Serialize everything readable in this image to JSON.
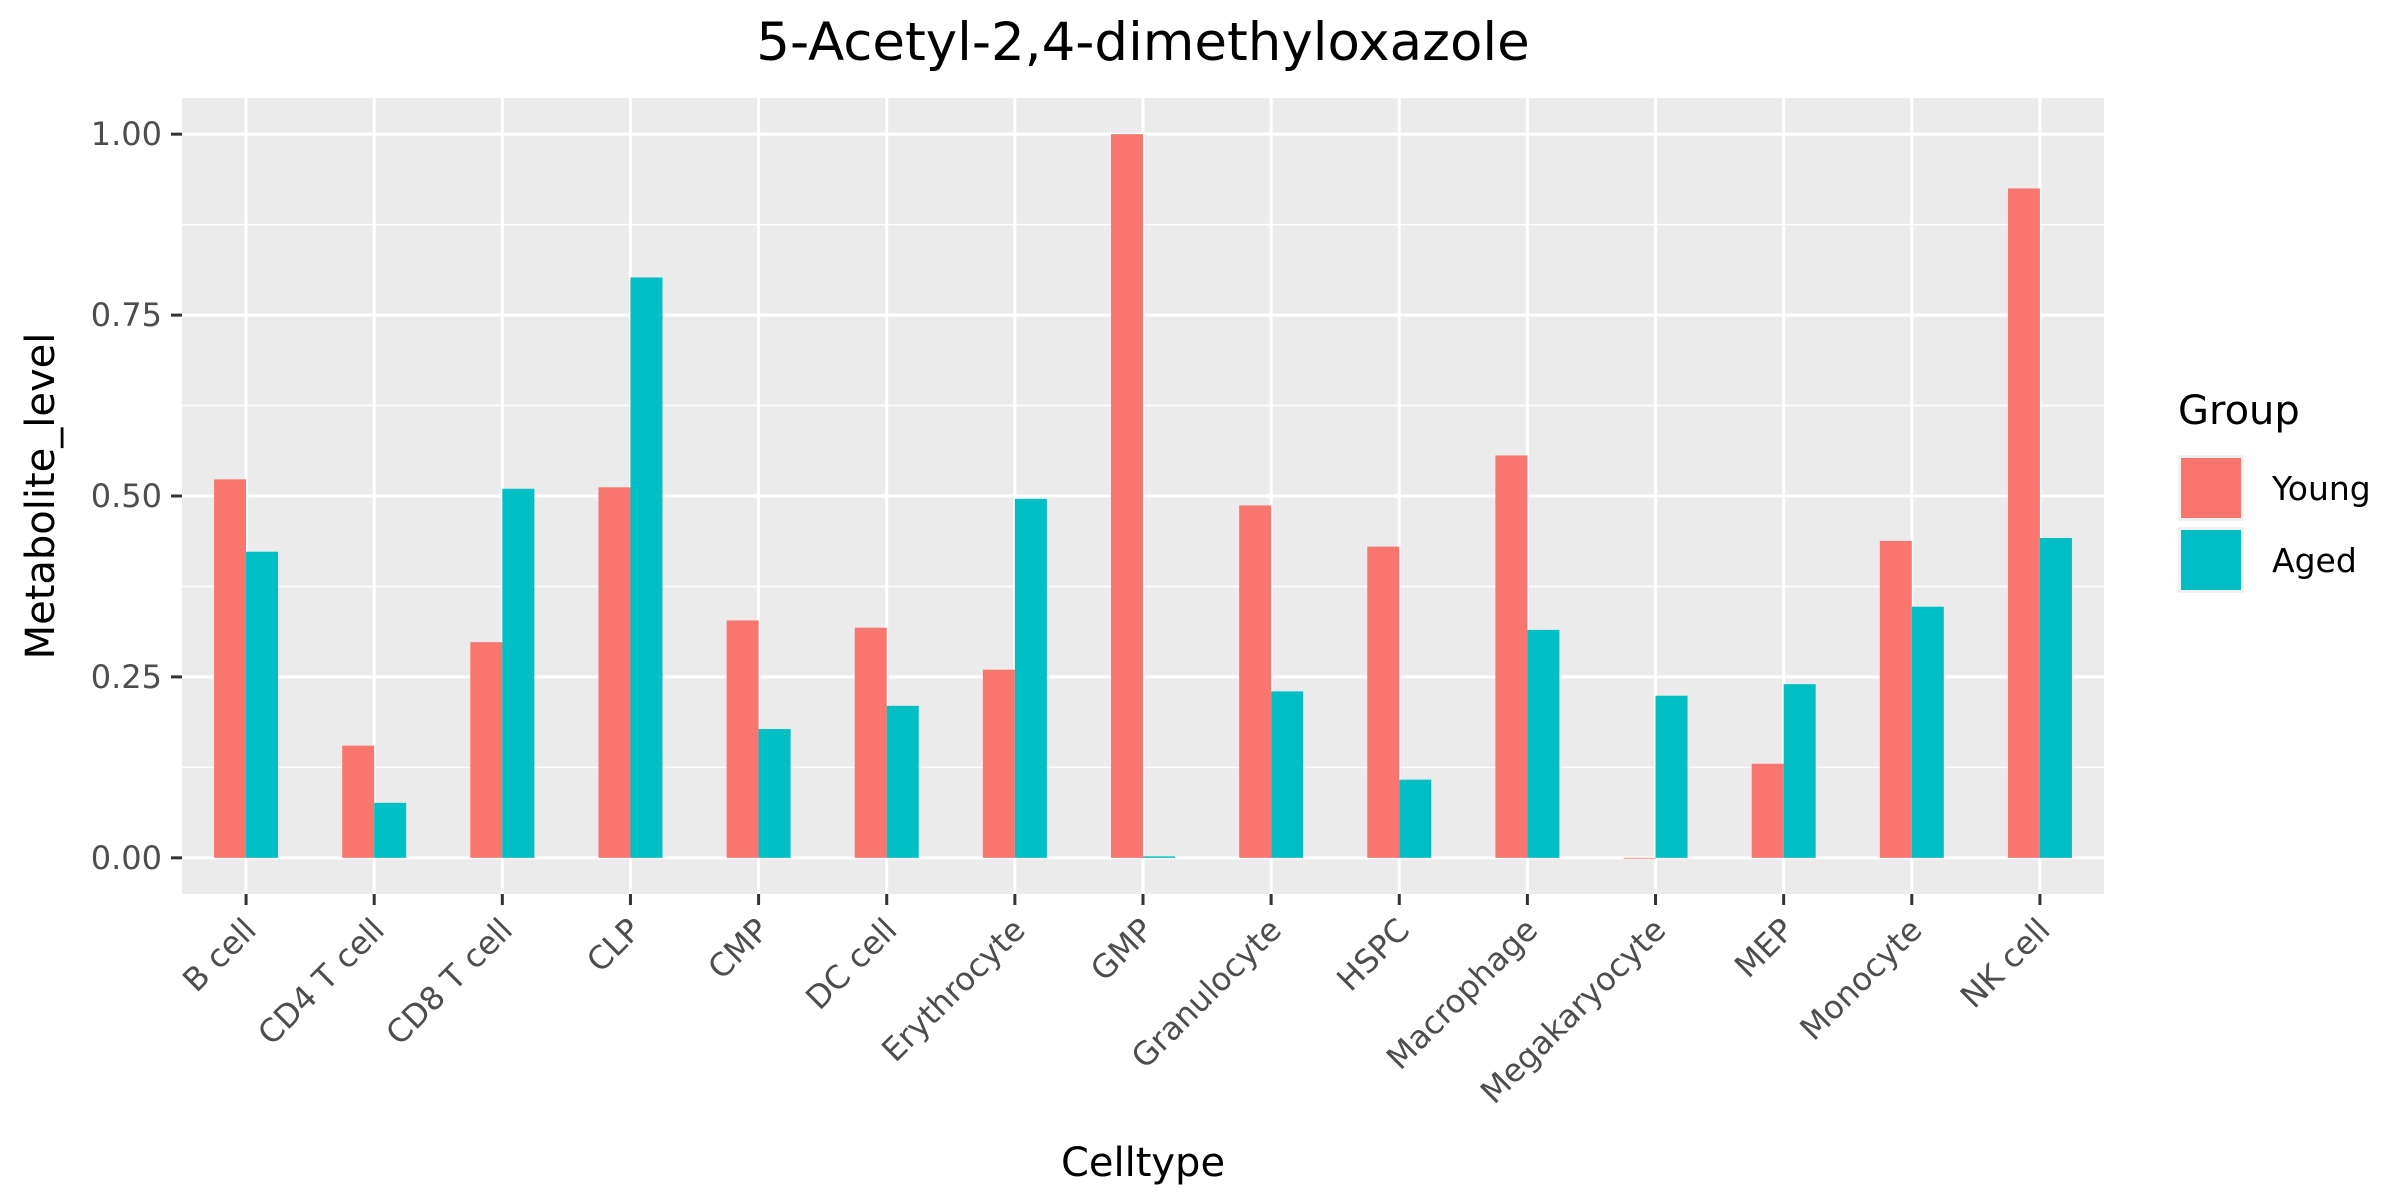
{
  "chart_data": {
    "type": "bar",
    "title": "5-Acetyl-2,4-dimethyloxazole",
    "xlabel": "Celltype",
    "ylabel": "Metabolite_level",
    "categories": [
      "B cell",
      "CD4 T cell",
      "CD8 T cell",
      "CLP",
      "CMP",
      "DC cell",
      "Erythrocyte",
      "GMP",
      "Granulocyte",
      "HSPC",
      "Macrophage",
      "Megakaryocyte",
      "MEP",
      "Monocyte",
      "NK cell"
    ],
    "series": [
      {
        "name": "Young",
        "color": "#F8766D",
        "values": [
          0.523,
          0.155,
          0.298,
          0.512,
          0.328,
          0.318,
          0.26,
          1.0,
          0.487,
          0.43,
          0.556,
          0.0,
          0.13,
          0.438,
          0.925
        ]
      },
      {
        "name": "Aged",
        "color": "#00BFC4",
        "values": [
          0.423,
          0.076,
          0.51,
          0.802,
          0.178,
          0.21,
          0.496,
          0.002,
          0.23,
          0.108,
          0.315,
          0.224,
          0.24,
          0.347,
          0.442
        ]
      }
    ],
    "y_ticks": [
      "0.00",
      "0.25",
      "0.50",
      "0.75",
      "1.00"
    ],
    "ylim": [
      -0.05,
      1.05
    ],
    "grid": true,
    "legend": {
      "title": "Group",
      "position": "right"
    },
    "panel_color": "#EBEBEB",
    "grid_color": "#FFFFFF"
  }
}
